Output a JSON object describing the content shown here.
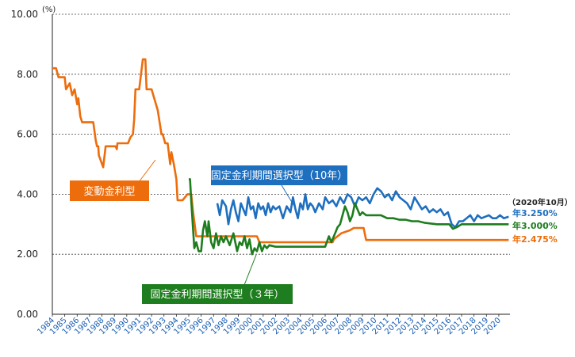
{
  "chart_data": {
    "type": "line",
    "ylim": [
      0,
      10
    ],
    "yticks": [
      "0.00",
      "2.00",
      "4.00",
      "6.00",
      "8.00",
      "10.00"
    ],
    "yunit": "(%)",
    "xlim": [
      1984,
      2020.9
    ],
    "xticks": [
      "1984",
      "1985",
      "1986",
      "1987",
      "1988",
      "1989",
      "1990",
      "1991",
      "1992",
      "1993",
      "1994",
      "1995",
      "1996",
      "1997",
      "1998",
      "1999",
      "2000",
      "2001",
      "2002",
      "2003",
      "2004",
      "2005",
      "2006",
      "2007",
      "2008",
      "2009",
      "2010",
      "2011",
      "2012",
      "2013",
      "2014",
      "2015",
      "2016",
      "2017",
      "2018",
      "2019",
      "2020"
    ],
    "grid": true,
    "date_note": "（2020年10月）",
    "colors": {
      "variable": "#ed6d0c",
      "fixed10": "#1f6fbf",
      "fixed3": "#1e7d1e"
    },
    "series": [
      {
        "name": "変動金利型",
        "color": "#ed6d0c",
        "end_label": "年2.475%",
        "x": [
          1984.0,
          1984.3,
          1984.5,
          1985.0,
          1985.1,
          1985.4,
          1985.6,
          1985.8,
          1986.0,
          1986.1,
          1986.25,
          1986.4,
          1986.55,
          1986.7,
          1987.3,
          1987.5,
          1987.6,
          1987.7,
          1987.75,
          1988.1,
          1988.3,
          1988.5,
          1989.1,
          1989.2,
          1989.25,
          1989.6,
          1989.8,
          1990.1,
          1990.3,
          1990.5,
          1990.6,
          1990.65,
          1990.7,
          1990.8,
          1991.0,
          1991.3,
          1991.5,
          1991.6,
          1991.8,
          1992.0,
          1992.5,
          1992.8,
          1992.9,
          1993.1,
          1993.3,
          1993.5,
          1993.6,
          1993.8,
          1994.0,
          1994.1,
          1994.5,
          1994.9,
          1995.0,
          1995.2,
          1995.35,
          1995.6,
          2000.0,
          2000.5,
          2000.7,
          2001.0,
          2006.6,
          2006.7,
          2007.0,
          2007.3,
          2008.0,
          2008.3,
          2008.5,
          2009.0,
          2009.1,
          2009.3,
          2020.8
        ],
        "y": [
          8.2,
          8.2,
          7.9,
          7.9,
          7.5,
          7.7,
          7.3,
          7.5,
          7.0,
          7.2,
          6.6,
          6.4,
          6.4,
          6.4,
          6.4,
          5.8,
          5.6,
          5.6,
          5.3,
          4.9,
          5.6,
          5.6,
          5.6,
          5.5,
          5.7,
          5.7,
          5.7,
          5.7,
          5.9,
          6.0,
          6.5,
          7.0,
          7.5,
          7.5,
          7.5,
          8.5,
          8.5,
          7.5,
          7.5,
          7.5,
          6.8,
          6.0,
          6.0,
          5.7,
          5.7,
          5.0,
          5.4,
          5.0,
          4.5,
          3.8,
          3.8,
          4.0,
          4.0,
          4.0,
          3.4,
          2.6,
          2.6,
          2.6,
          2.4,
          2.4,
          2.4,
          2.5,
          2.6,
          2.7,
          2.8,
          2.875,
          2.875,
          2.875,
          2.875,
          2.475,
          2.475
        ]
      },
      {
        "name": "固定金利期間選択型（10年）",
        "color": "#1f6fbf",
        "end_label": "年3.250%",
        "x": [
          1997.3,
          1997.5,
          1997.7,
          1998.0,
          1998.2,
          1998.4,
          1998.6,
          1998.8,
          1999.0,
          1999.2,
          1999.4,
          1999.6,
          1999.8,
          2000.0,
          2000.2,
          2000.4,
          2000.6,
          2000.8,
          2001.0,
          2001.2,
          2001.4,
          2001.6,
          2001.8,
          2002.0,
          2002.3,
          2002.6,
          2002.9,
          2003.2,
          2003.4,
          2003.6,
          2003.8,
          2004.0,
          2004.2,
          2004.4,
          2004.6,
          2004.8,
          2005.0,
          2005.2,
          2005.5,
          2005.8,
          2006.0,
          2006.3,
          2006.6,
          2006.9,
          2007.2,
          2007.5,
          2007.8,
          2008.1,
          2008.4,
          2008.7,
          2009.0,
          2009.3,
          2009.6,
          2009.9,
          2010.2,
          2010.5,
          2010.8,
          2011.1,
          2011.4,
          2011.7,
          2012.0,
          2012.3,
          2012.6,
          2012.9,
          2013.2,
          2013.5,
          2013.8,
          2014.1,
          2014.4,
          2014.7,
          2015.0,
          2015.3,
          2015.6,
          2015.9,
          2016.2,
          2016.5,
          2016.8,
          2017.1,
          2017.4,
          2017.7,
          2018.0,
          2018.3,
          2018.6,
          2018.9,
          2019.2,
          2019.5,
          2019.8,
          2020.1,
          2020.4,
          2020.8
        ],
        "y": [
          3.7,
          3.3,
          3.8,
          3.6,
          3.0,
          3.5,
          3.8,
          3.4,
          3.1,
          3.7,
          3.5,
          3.3,
          3.9,
          3.5,
          3.6,
          3.2,
          3.7,
          3.5,
          3.6,
          3.3,
          3.7,
          3.4,
          3.6,
          3.5,
          3.6,
          3.2,
          3.6,
          3.4,
          3.9,
          3.5,
          3.2,
          3.7,
          3.5,
          4.0,
          3.5,
          3.7,
          3.6,
          3.4,
          3.7,
          3.5,
          3.9,
          3.7,
          3.8,
          3.6,
          3.9,
          3.7,
          4.0,
          3.9,
          3.6,
          3.9,
          3.8,
          3.9,
          3.7,
          4.0,
          4.2,
          4.1,
          3.9,
          4.0,
          3.8,
          4.1,
          3.9,
          3.8,
          3.7,
          3.5,
          3.9,
          3.7,
          3.5,
          3.6,
          3.4,
          3.5,
          3.4,
          3.5,
          3.3,
          3.4,
          3.0,
          2.9,
          3.1,
          3.1,
          3.2,
          3.3,
          3.1,
          3.3,
          3.2,
          3.25,
          3.3,
          3.2,
          3.2,
          3.3,
          3.2,
          3.25
        ]
      },
      {
        "name": "固定金利期間選択型（３年）",
        "color": "#1e7d1e",
        "end_label": "年3.000%",
        "x": [
          1995.0,
          1995.1,
          1995.2,
          1995.35,
          1995.45,
          1995.6,
          1995.8,
          1996.0,
          1996.15,
          1996.3,
          1996.5,
          1996.6,
          1996.8,
          1997.0,
          1997.2,
          1997.4,
          1997.6,
          1997.8,
          1998.0,
          1998.3,
          1998.6,
          1998.9,
          1999.1,
          1999.3,
          1999.5,
          1999.7,
          1999.9,
          2000.1,
          2000.3,
          2000.5,
          2000.7,
          2000.9,
          2001.1,
          2001.3,
          2001.5,
          2002.0,
          2003.0,
          2004.0,
          2005.0,
          2006.0,
          2006.3,
          2006.5,
          2006.8,
          2007.0,
          2007.2,
          2007.4,
          2007.6,
          2007.8,
          2008.0,
          2008.2,
          2008.4,
          2008.6,
          2008.8,
          2009.0,
          2009.3,
          2009.6,
          2010.0,
          2010.5,
          2011.0,
          2011.5,
          2012.0,
          2012.5,
          2013.0,
          2013.5,
          2014.0,
          2015.0,
          2015.5,
          2016.0,
          2016.3,
          2016.6,
          2017.0,
          2018.0,
          2019.0,
          2020.0,
          2020.4,
          2020.8
        ],
        "y": [
          4.5,
          4.5,
          3.8,
          2.8,
          2.2,
          2.4,
          2.1,
          2.1,
          2.8,
          3.1,
          2.6,
          3.1,
          2.4,
          2.2,
          2.7,
          2.3,
          2.6,
          2.4,
          2.6,
          2.3,
          2.7,
          2.1,
          2.4,
          2.3,
          2.6,
          2.2,
          2.5,
          2.0,
          2.2,
          2.1,
          2.4,
          2.1,
          2.3,
          2.2,
          2.3,
          2.25,
          2.25,
          2.25,
          2.25,
          2.25,
          2.6,
          2.4,
          2.7,
          2.9,
          3.0,
          3.3,
          3.6,
          3.4,
          3.1,
          3.3,
          3.7,
          3.5,
          3.3,
          3.4,
          3.3,
          3.3,
          3.3,
          3.3,
          3.2,
          3.2,
          3.15,
          3.15,
          3.1,
          3.1,
          3.05,
          3.0,
          3.0,
          3.0,
          2.85,
          2.9,
          3.0,
          3.0,
          3.0,
          3.0,
          3.0,
          3.0
        ]
      }
    ]
  },
  "callouts": {
    "variable": "変動金利型",
    "fixed10": "固定金利期間選択型（10年）",
    "fixed3": "固定金利期間選択型（３年）"
  }
}
